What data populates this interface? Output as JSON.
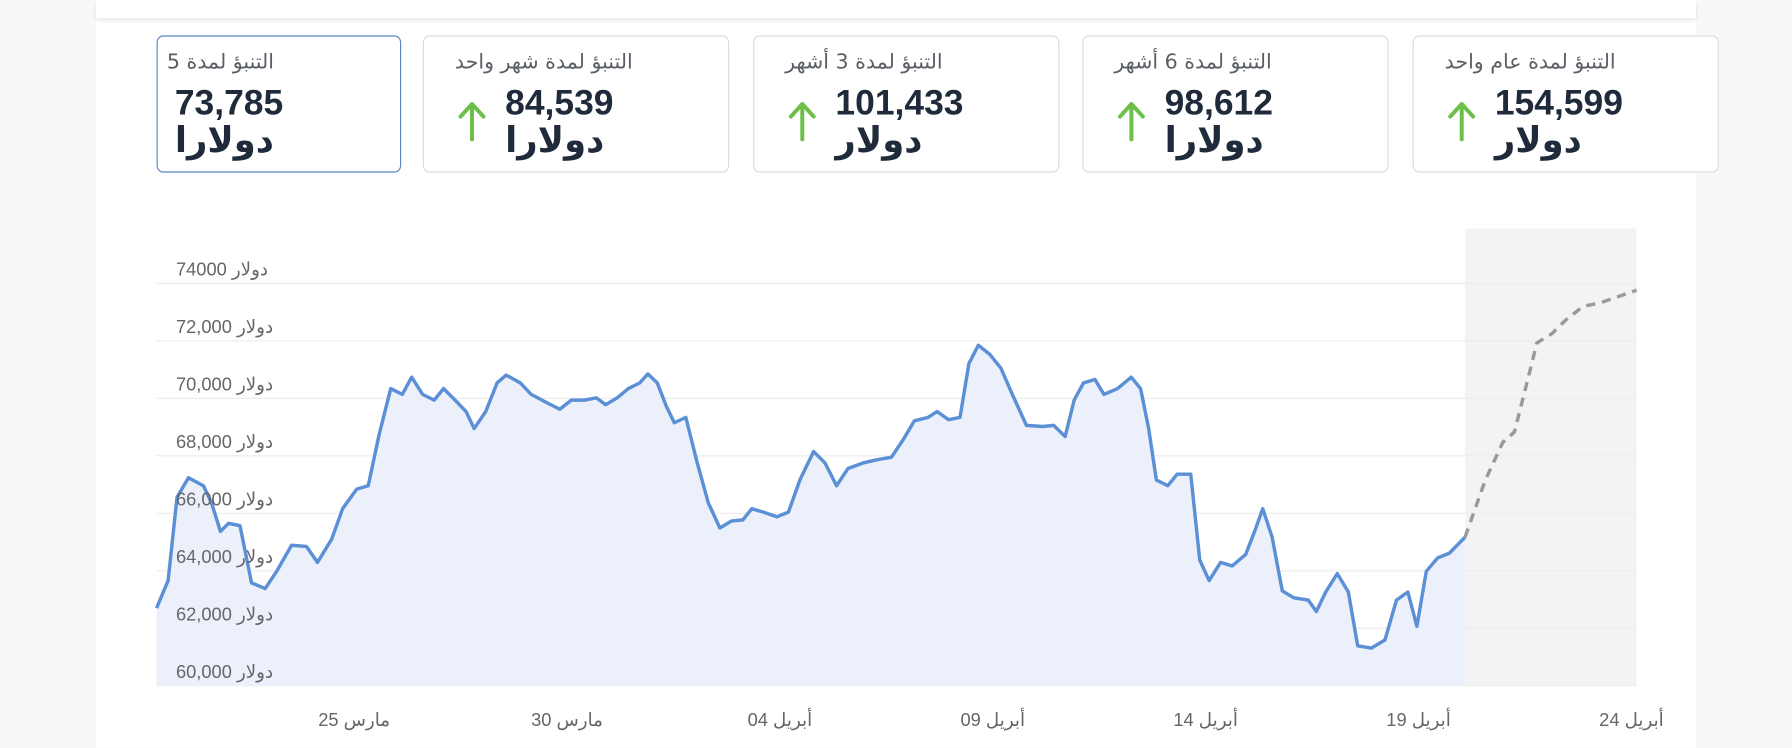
{
  "cards": [
    {
      "title": "التنبؤ لمدة 5",
      "value": "73,785 دولارا"
    },
    {
      "title": "التنبؤ لمدة شهر واحد",
      "value": "84,539 دولارا"
    },
    {
      "title": "التنبؤ لمدة 3 أشهر",
      "value": "101,433 دولار"
    },
    {
      "title": "التنبؤ لمدة 6 أشهر",
      "value": "98,612 دولارا"
    },
    {
      "title": "التنبؤ لمدة عام واحد",
      "value": "154,599 دولار"
    }
  ],
  "chart_data": {
    "type": "line",
    "xlim": [
      20.36,
      55.12
    ],
    "xticks": [
      {
        "value": 25,
        "label": "25 مارس"
      },
      {
        "value": 30,
        "label": "30 مارس"
      },
      {
        "value": 35,
        "label": "04 أبريل"
      },
      {
        "value": 40,
        "label": "09 أبريل"
      },
      {
        "value": 45,
        "label": "14 أبريل"
      },
      {
        "value": 50,
        "label": "19 أبريل"
      },
      {
        "value": 55,
        "label": "24 أبريل"
      }
    ],
    "ylim": [
      60000,
      74000
    ],
    "yticks": [
      {
        "value": 60000,
        "label": "60,000 دولار"
      },
      {
        "value": 62000,
        "label": "62,000 دولار"
      },
      {
        "value": 64000,
        "label": "64,000 دولار"
      },
      {
        "value": 66000,
        "label": "66,000 دولار"
      },
      {
        "value": 68000,
        "label": "68,000 دولار"
      },
      {
        "value": 70000,
        "label": "70,000 دولار"
      },
      {
        "value": 72000,
        "label": "72,000 دولار"
      },
      {
        "value": 74000,
        "label": "74000 دولار"
      }
    ],
    "grid": true,
    "series": [
      {
        "color": "#5b8fd6",
        "area": "#ebf0fa",
        "x": [
          20.36,
          20.63,
          20.84,
          21.11,
          21.46,
          21.65,
          21.86,
          22.05,
          22.32,
          22.59,
          22.91,
          23.18,
          23.53,
          23.88,
          24.14,
          24.47,
          24.73,
          25.06,
          25.33,
          25.59,
          25.86,
          26.13,
          26.35,
          26.61,
          26.88,
          27.1,
          27.37,
          27.63,
          27.82,
          28.09,
          28.36,
          28.57,
          28.9,
          29.16,
          29.51,
          29.83,
          30.1,
          30.42,
          30.69,
          30.91,
          31.18,
          31.44,
          31.71,
          31.9,
          32.12,
          32.33,
          32.52,
          32.79,
          33.06,
          33.32,
          33.59,
          33.86,
          34.13,
          34.34,
          34.61,
          34.93,
          35.2,
          35.47,
          35.79,
          36.06,
          36.33,
          36.6,
          36.95,
          37.3,
          37.62,
          37.89,
          38.16,
          38.48,
          38.69,
          38.96,
          39.23,
          39.44,
          39.66,
          39.93,
          40.19,
          40.46,
          40.79,
          41.16,
          41.43,
          41.7,
          41.91,
          42.13,
          42.4,
          42.61,
          42.93,
          43.25,
          43.47,
          43.66,
          43.84,
          44.11,
          44.33,
          44.65,
          44.86,
          45.08,
          45.35,
          45.62,
          45.94,
          46.15,
          46.34,
          46.56,
          46.8,
          47.07,
          47.41,
          47.6,
          47.82,
          48.09,
          48.35,
          48.57,
          48.89,
          49.21,
          49.48,
          49.75,
          49.96,
          50.18,
          50.45,
          50.72,
          51.09
        ],
        "values": [
          62700,
          63660,
          66560,
          67240,
          66960,
          66360,
          65370,
          65650,
          65570,
          63580,
          63380,
          63980,
          64890,
          64850,
          64290,
          65090,
          66160,
          66840,
          66960,
          68750,
          70340,
          70140,
          70740,
          70140,
          69940,
          70340,
          69940,
          69540,
          68950,
          69540,
          70540,
          70810,
          70540,
          70140,
          69860,
          69620,
          69940,
          69940,
          70020,
          69780,
          70020,
          70340,
          70540,
          70850,
          70540,
          69740,
          69150,
          69340,
          67750,
          66360,
          65490,
          65730,
          65770,
          66160,
          66040,
          65880,
          66040,
          67160,
          68150,
          67750,
          66960,
          67560,
          67750,
          67870,
          67950,
          68550,
          69220,
          69340,
          69540,
          69260,
          69340,
          71210,
          71850,
          71530,
          71050,
          70140,
          69060,
          69020,
          69060,
          68670,
          69940,
          70540,
          70660,
          70140,
          70340,
          70740,
          70340,
          68950,
          67160,
          66960,
          67360,
          67360,
          64370,
          63660,
          64290,
          64170,
          64570,
          65370,
          66160,
          65170,
          63300,
          63060,
          62980,
          62580,
          63260,
          63900,
          63260,
          61390,
          61310,
          61590,
          62980,
          63260,
          62070,
          63980,
          64450,
          64610,
          65170
        ]
      },
      {
        "color": "#999999",
        "dashed": true,
        "shade": "#f3f3f3",
        "x": [
          51.09,
          51.57,
          51.98,
          52.25,
          52.51,
          52.78,
          53.13,
          53.45,
          53.86,
          54.26,
          54.8,
          55.12
        ],
        "values": [
          65170,
          67160,
          68470,
          68830,
          70340,
          71930,
          72250,
          72720,
          73200,
          73320,
          73600,
          73760
        ]
      }
    ]
  }
}
